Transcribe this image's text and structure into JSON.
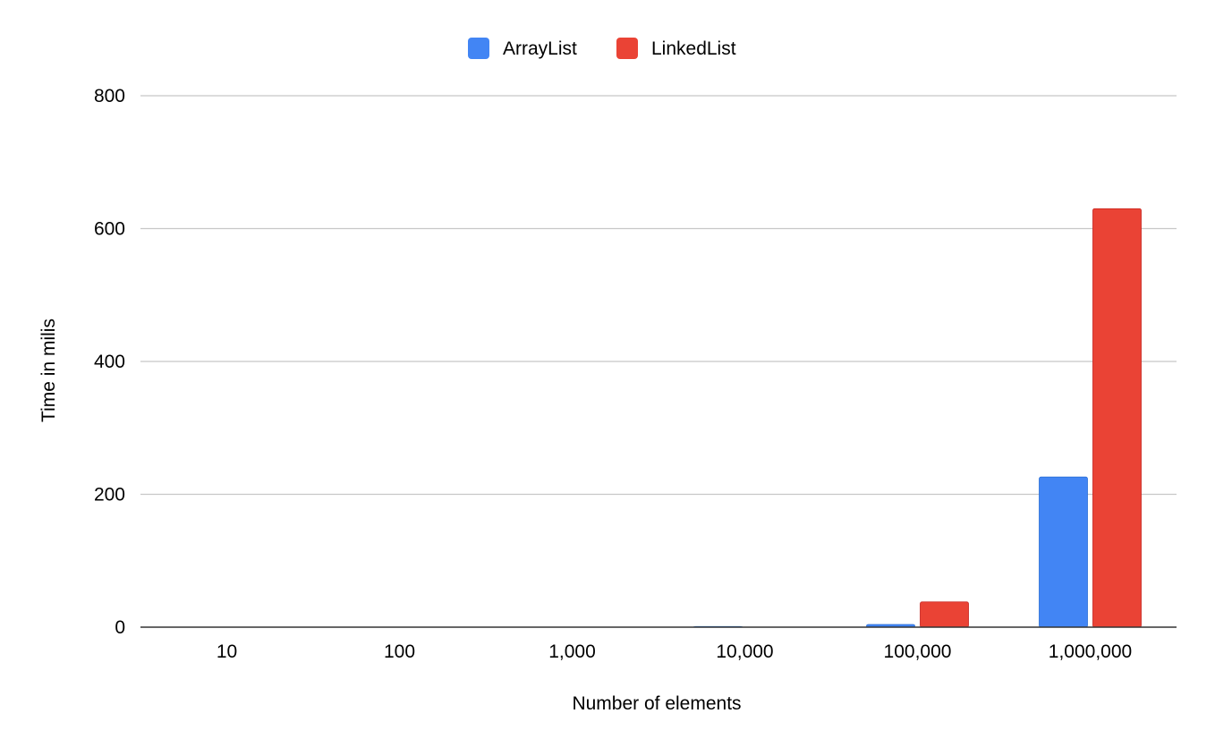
{
  "chart_data": {
    "type": "bar",
    "title": "",
    "xlabel": "Number of elements",
    "ylabel": "Time in milis",
    "categories": [
      "10",
      "100",
      "1,000",
      "10,000",
      "100,000",
      "1,000,000"
    ],
    "series": [
      {
        "name": "ArrayList",
        "color": "#4285f4",
        "values": [
          0,
          0,
          0,
          1,
          4,
          226
        ]
      },
      {
        "name": "LinkedList",
        "color": "#ea4335",
        "values": [
          0,
          0,
          0,
          0,
          38,
          630
        ]
      }
    ],
    "ylim": [
      0,
      800
    ],
    "yticks": [
      0,
      200,
      400,
      600,
      800
    ],
    "grid": true,
    "legend_position": "top-center"
  }
}
